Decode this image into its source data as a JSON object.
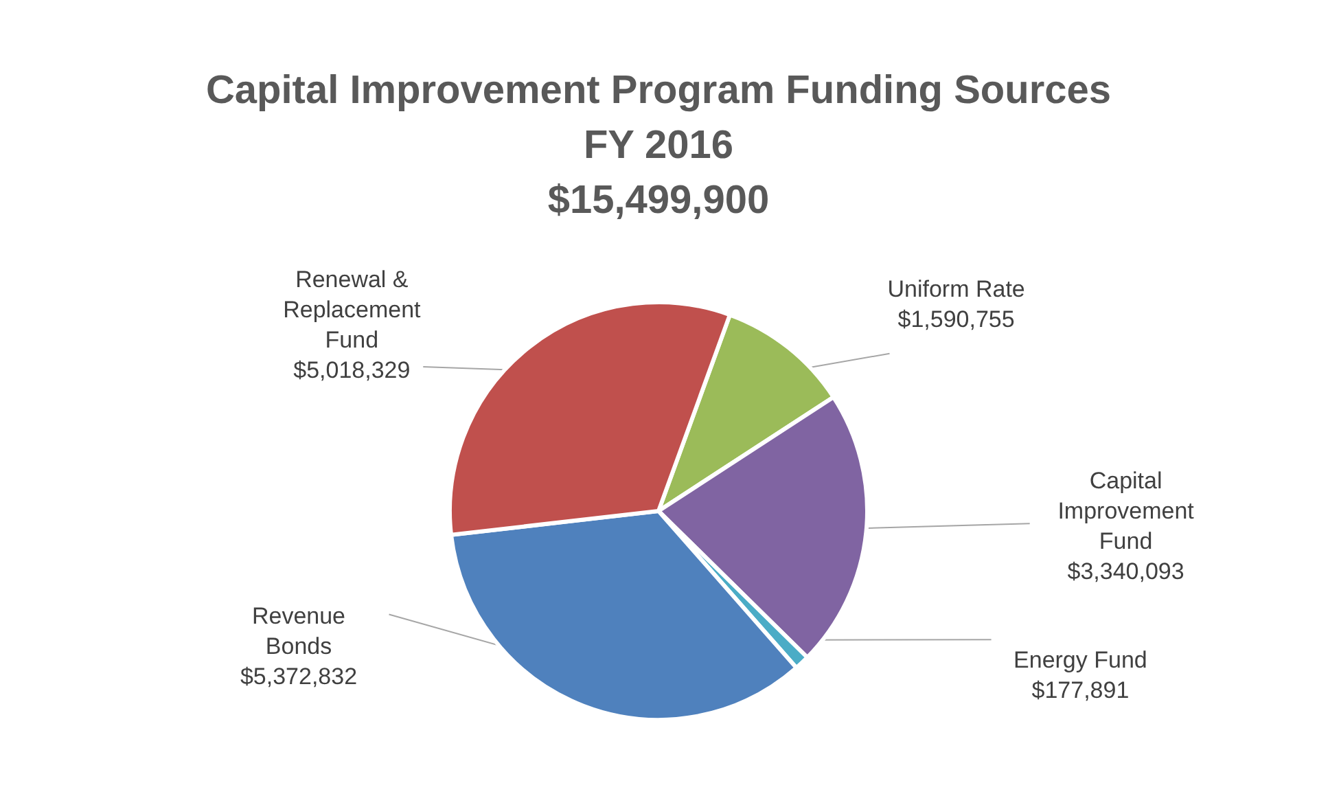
{
  "chart_data": {
    "type": "pie",
    "title": "Capital Improvement Program Funding Sources\nFY 2016\n$15,499,900",
    "categories": [
      "Uniform Rate",
      "Capital Improvement Fund",
      "Energy Fund",
      "Revenue Bonds",
      "Renewal & Replacement Fund"
    ],
    "values": [
      1590755,
      3340093,
      177891,
      5372832,
      5018329
    ],
    "colors": [
      "#9bbb59",
      "#8064a2",
      "#4bacc6",
      "#4f81bd",
      "#c0504d"
    ],
    "value_labels": [
      "$1,590,755",
      "$3,340,093",
      "$177,891",
      "$5,372,832",
      "$5,018,329"
    ],
    "legend": false
  }
}
